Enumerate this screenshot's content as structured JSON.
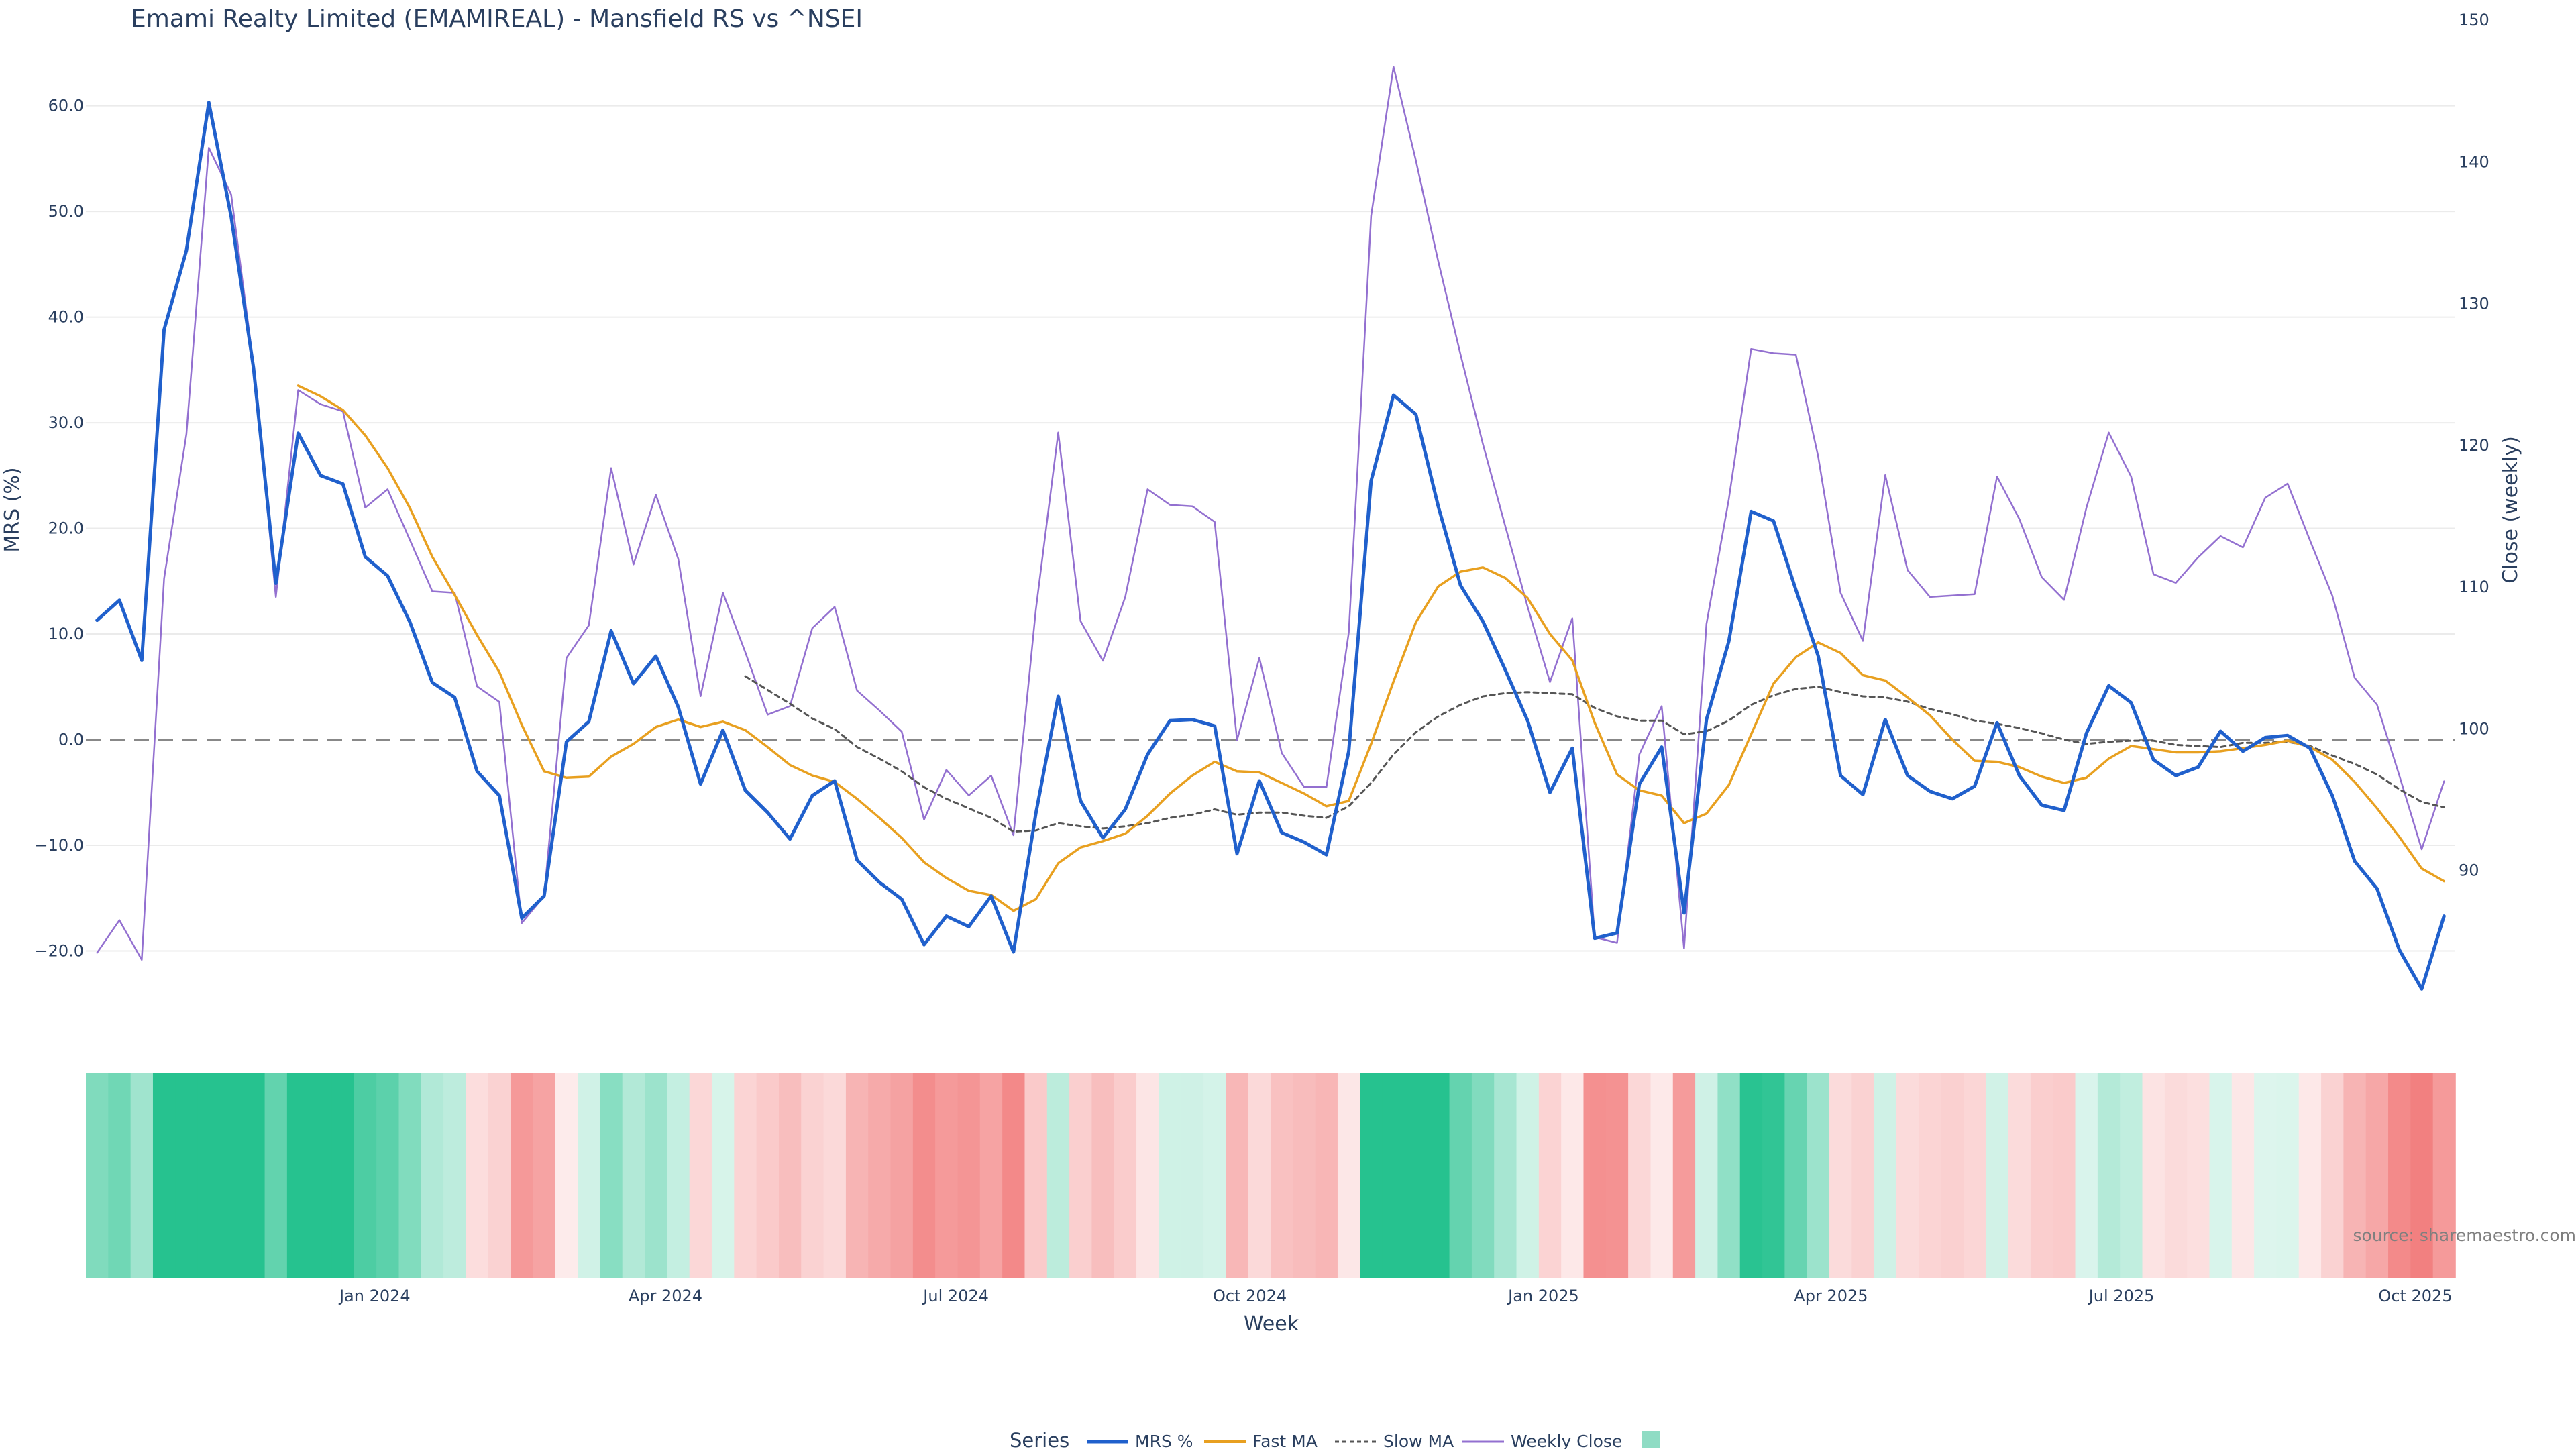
{
  "chart_data": {
    "type": "line",
    "title": "Emami Realty Limited (EMAMIREAL) - Mansfield RS vs ^NSEI",
    "xlabel": "Week",
    "ylabel": "MRS (%)",
    "ylabel_right": "Close (weekly)",
    "x_start": "2023-10-06",
    "x_tick_labels": [
      "Jan 2024",
      "Apr 2024",
      "Jul 2024",
      "Oct 2024",
      "Jan 2025",
      "Apr 2025",
      "Jul 2025",
      "Oct 2025"
    ],
    "x_tick_dates": [
      "2024-01-01",
      "2024-04-01",
      "2024-07-01",
      "2024-10-01",
      "2025-01-01",
      "2025-04-01",
      "2025-07-01",
      "2025-10-01"
    ],
    "y_ticks": [
      -20,
      -10,
      0,
      10,
      20,
      30,
      40,
      50,
      60
    ],
    "y_tick_labels": [
      "−20.0",
      "−10.0",
      "0.0",
      "10.0",
      "20.0",
      "30.0",
      "40.0",
      "50.0",
      "60.0"
    ],
    "ylim": [
      -24.6,
      68.1
    ],
    "y2_ticks": [
      90,
      100,
      110,
      120,
      130,
      140,
      150
    ],
    "y2_tick_labels": [
      "90",
      "100",
      "110",
      "120",
      "130",
      "140",
      "150"
    ],
    "y2lim": [
      80.9,
      150
    ],
    "legend_title": "Series",
    "legend_position": "bottom-center",
    "source_text": "source: sharemaestro.com",
    "colors": {
      "mrs": "#2060cc",
      "fast_ma": "#e8a020",
      "slow_ma": "#555555",
      "weekly_close": "#9370d0",
      "heat_positive": "#26c28f",
      "heat_negative": "#f28080",
      "zero_line": "#888888",
      "grid": "#ebebeb"
    },
    "series": [
      {
        "name": "MRS %",
        "axis": "left",
        "values": [
          11.3,
          13.2,
          7.5,
          38.8,
          46.3,
          60.3,
          49.5,
          35.2,
          14.8,
          29.0,
          25.0,
          24.2,
          17.3,
          15.5,
          11.1,
          5.4,
          4.0,
          -3.0,
          -5.3,
          -16.9,
          -14.8,
          -0.2,
          1.7,
          10.3,
          5.3,
          7.9,
          3.1,
          -4.2,
          0.9,
          -4.8,
          -6.9,
          -9.4,
          -5.3,
          -3.9,
          -11.4,
          -13.5,
          -15.1,
          -19.4,
          -16.7,
          -17.7,
          -14.8,
          -20.1,
          -7.0,
          4.1,
          -5.8,
          -9.3,
          -6.6,
          -1.4,
          1.8,
          1.9,
          1.3,
          -10.8,
          -3.9,
          -8.8,
          -9.7,
          -10.9,
          -1.1,
          24.5,
          32.6,
          30.8,
          22.1,
          14.6,
          11.2,
          6.6,
          1.8,
          -5.0,
          -0.8,
          -18.8,
          -18.3,
          -4.2,
          -0.7,
          -16.4,
          1.9,
          9.3,
          21.6,
          20.7,
          14.2,
          7.9,
          -3.4,
          -5.2,
          1.9,
          -3.4,
          -4.9,
          -5.6,
          -4.4,
          1.6,
          -3.4,
          -6.2,
          -6.7,
          0.6,
          5.1,
          3.5,
          -1.9,
          -3.4,
          -2.6,
          0.8,
          -1.1,
          0.2,
          0.4,
          -0.8,
          -5.3,
          -11.5,
          -14.1,
          -19.9,
          -23.6,
          -16.7
        ]
      },
      {
        "name": "Fast MA",
        "axis": "left",
        "values": [
          null,
          null,
          null,
          null,
          null,
          null,
          null,
          null,
          null,
          33.5,
          32.5,
          31.2,
          28.8,
          25.7,
          21.9,
          17.3,
          13.7,
          9.9,
          6.4,
          1.4,
          -3.0,
          -3.6,
          -3.5,
          -1.6,
          -0.4,
          1.2,
          1.9,
          1.2,
          1.7,
          0.9,
          -0.7,
          -2.4,
          -3.4,
          -4.0,
          -5.6,
          -7.4,
          -9.3,
          -11.6,
          -13.1,
          -14.3,
          -14.7,
          -16.2,
          -15.1,
          -11.7,
          -10.2,
          -9.6,
          -8.9,
          -7.2,
          -5.1,
          -3.4,
          -2.1,
          -3.0,
          -3.1,
          -4.1,
          -5.1,
          -6.3,
          -5.8,
          -0.4,
          5.5,
          11.1,
          14.5,
          15.9,
          16.3,
          15.3,
          13.4,
          10.0,
          7.5,
          1.6,
          -3.3,
          -4.8,
          -5.3,
          -7.9,
          -7.0,
          -4.3,
          0.5,
          5.3,
          7.8,
          9.2,
          8.2,
          6.1,
          5.6,
          4.0,
          2.3,
          0.0,
          -2.0,
          -2.1,
          -2.6,
          -3.5,
          -4.1,
          -3.6,
          -1.8,
          -0.6,
          -0.9,
          -1.2,
          -1.2,
          -1.1,
          -0.8,
          -0.5,
          -0.1,
          -0.7,
          -1.9,
          -4.0,
          -6.5,
          -9.2,
          -12.2,
          -13.4
        ]
      },
      {
        "name": "Slow MA",
        "axis": "left",
        "values": [
          null,
          null,
          null,
          null,
          null,
          null,
          null,
          null,
          null,
          null,
          null,
          null,
          null,
          null,
          null,
          null,
          null,
          null,
          null,
          null,
          null,
          null,
          null,
          null,
          null,
          null,
          null,
          null,
          null,
          6.0,
          4.7,
          3.4,
          2.0,
          1.0,
          -0.7,
          -1.8,
          -3.0,
          -4.5,
          -5.6,
          -6.5,
          -7.4,
          -8.7,
          -8.6,
          -7.9,
          -8.2,
          -8.4,
          -8.2,
          -7.9,
          -7.4,
          -7.1,
          -6.6,
          -7.1,
          -6.9,
          -6.9,
          -7.2,
          -7.4,
          -6.3,
          -4.1,
          -1.4,
          0.7,
          2.2,
          3.3,
          4.1,
          4.4,
          4.5,
          4.4,
          4.3,
          3.0,
          2.2,
          1.8,
          1.8,
          0.5,
          0.8,
          1.8,
          3.3,
          4.2,
          4.8,
          5.0,
          4.5,
          4.1,
          4.0,
          3.6,
          2.9,
          2.4,
          1.8,
          1.5,
          1.1,
          0.6,
          0.0,
          -0.4,
          -0.2,
          -0.1,
          -0.1,
          -0.5,
          -0.6,
          -0.7,
          -0.3,
          -0.3,
          -0.2,
          -0.6,
          -1.5,
          -2.3,
          -3.3,
          -4.7,
          -5.9,
          -6.4
        ]
      },
      {
        "name": "Weekly Close",
        "axis": "right",
        "values": [
          84.2,
          86.5,
          83.7,
          110.6,
          120.8,
          141.0,
          137.7,
          125.7,
          109.3,
          123.9,
          122.9,
          122.4,
          115.6,
          116.9,
          113.3,
          109.7,
          109.6,
          103.0,
          101.9,
          86.3,
          88.2,
          105.0,
          107.3,
          118.4,
          111.6,
          116.5,
          112.0,
          102.3,
          109.6,
          105.4,
          101.0,
          101.6,
          107.1,
          108.6,
          102.7,
          101.3,
          99.8,
          93.6,
          97.1,
          95.3,
          96.7,
          92.5,
          108.4,
          120.9,
          107.6,
          104.8,
          109.3,
          116.9,
          115.8,
          115.7,
          114.6,
          99.2,
          105.0,
          98.3,
          95.9,
          95.9,
          106.8,
          136.2,
          146.7,
          140.1,
          133.0,
          126.4,
          120.1,
          114.3,
          108.6,
          103.3,
          107.8,
          85.3,
          84.9,
          98.2,
          101.6,
          84.5,
          107.4,
          116.2,
          126.8,
          126.5,
          126.4,
          119.2,
          109.6,
          106.2,
          117.9,
          111.2,
          109.3,
          109.4,
          109.5,
          117.8,
          114.8,
          110.7,
          109.1,
          115.6,
          120.9,
          117.8,
          110.9,
          110.3,
          112.1,
          113.6,
          112.8,
          116.3,
          117.3,
          113.3,
          109.4,
          103.6,
          101.7,
          96.7,
          91.5,
          96.3
        ]
      }
    ],
    "legend_entries": [
      "MRS %",
      "Fast MA",
      "Slow MA",
      "Weekly Close"
    ]
  }
}
